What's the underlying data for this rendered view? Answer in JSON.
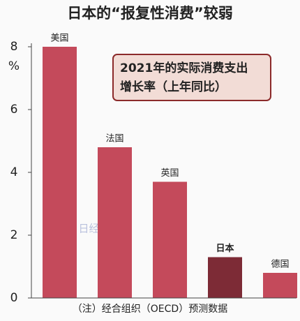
{
  "chart_data": {
    "type": "bar",
    "title": "日本的“报复性消费”较弱",
    "y_unit": "%",
    "annotation": [
      "2021年的实际消费支出",
      "增长率（上年同比）"
    ],
    "footnote": "（注）经合组织（OECD）预测数据",
    "watermark": "日经中文网",
    "categories": [
      "美国",
      "法国",
      "英国",
      "日本",
      "德国"
    ],
    "values": [
      8.0,
      4.8,
      3.7,
      1.3,
      0.8
    ],
    "colors": [
      "#c44a5b",
      "#c44a5b",
      "#c44a5b",
      "#7d2b36",
      "#c44a5b"
    ],
    "highlight": "日本",
    "ylim": [
      0,
      8
    ],
    "yticks": [
      0,
      2,
      4,
      6,
      8
    ]
  }
}
